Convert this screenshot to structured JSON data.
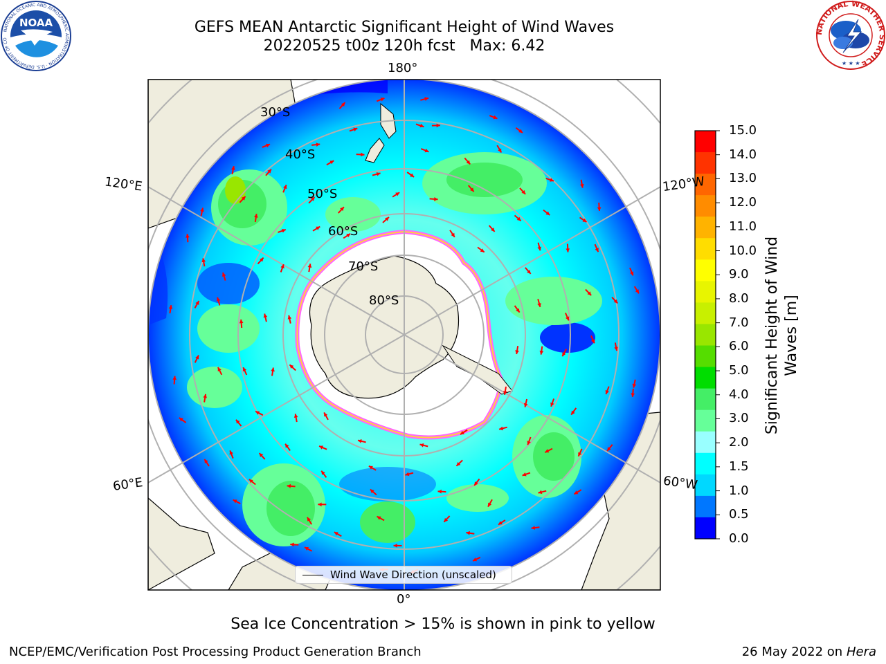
{
  "header": {
    "title_line1": "GEFS MEAN Antarctic Significant Height of Wind Waves",
    "title_line2": "20220525 t00z 120h fcst   Max: 6.42"
  },
  "logos": {
    "noaa": {
      "text": "NOAA",
      "ring_text": "NATIONAL OCEANIC AND ATMOSPHERIC ADMINISTRATION · U.S. DEPARTMENT OF COMMERCE"
    },
    "nws": {
      "ring_text": "NATIONAL WEATHER SERVICE"
    }
  },
  "map": {
    "projection": "south-polar-stereographic",
    "longitude_labels": {
      "top": "180°",
      "bottom": "0°",
      "upper_left": "120°E",
      "upper_right": "120°W",
      "lower_left": "60°E",
      "lower_right": "60°W"
    },
    "latitude_labels": [
      "30°S",
      "40°S",
      "50°S",
      "60°S",
      "70°S",
      "80°S"
    ],
    "gridlines": true,
    "legend": {
      "entry": "Wind Wave Direction (unscaled)",
      "placement": "bottom-center"
    },
    "colors": {
      "land": "#efedde",
      "ocean_low": "#00ffff",
      "arrow": "#ff0000",
      "ice_edge_pink": "#ff66ff",
      "ice_edge_yellow": "#ffd040",
      "grid": "#b0b0b0"
    }
  },
  "colorbar": {
    "label": "Significant Height of Wind Waves [m]",
    "ticks": [
      "15.0",
      "14.0",
      "13.0",
      "12.0",
      "11.0",
      "10.0",
      "9.0",
      "8.0",
      "7.0",
      "6.0",
      "5.0",
      "4.0",
      "3.0",
      "2.0",
      "1.5",
      "1.0",
      "0.5",
      "0.0"
    ],
    "colors": [
      "#ff0000",
      "#ff3300",
      "#ff6600",
      "#ff8c00",
      "#ffb300",
      "#ffdd00",
      "#ffff00",
      "#e8f500",
      "#c8f000",
      "#99e600",
      "#55dd00",
      "#00dd00",
      "#44ee66",
      "#66ff99",
      "#99ffff",
      "#00ffff",
      "#00d8ff",
      "#0077ff",
      "#0000ff"
    ]
  },
  "footer": {
    "note": "Sea Ice Concentration > 15% is shown in pink to yellow",
    "credit": "NCEP/EMC/Verification Post Processing Product Generation Branch",
    "date": "26 May 2022 on",
    "machine": "Hera"
  }
}
